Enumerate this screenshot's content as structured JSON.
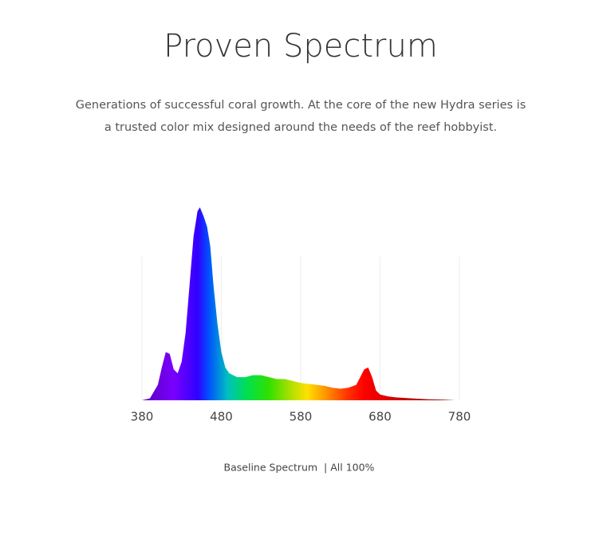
{
  "header": {
    "title": "Proven Spectrum",
    "subtitle_lines": [
      "Generations of successful coral growth. At the core of the new Hydra series is",
      "a trusted color mix designed around the needs of the reef hobbyist."
    ]
  },
  "chart_data": {
    "type": "area",
    "x": [
      380,
      390,
      400,
      405,
      410,
      415,
      420,
      425,
      430,
      435,
      440,
      445,
      450,
      453,
      458,
      462,
      466,
      470,
      475,
      480,
      485,
      490,
      500,
      510,
      520,
      530,
      540,
      550,
      560,
      570,
      580,
      590,
      600,
      610,
      620,
      630,
      640,
      650,
      655,
      660,
      665,
      670,
      675,
      680,
      690,
      700,
      720,
      740,
      760,
      775
    ],
    "values": [
      0,
      1,
      8,
      17,
      25,
      24,
      16,
      14,
      20,
      35,
      60,
      85,
      98,
      100,
      95,
      90,
      80,
      60,
      40,
      25,
      17,
      14,
      12,
      12,
      13,
      13,
      12,
      11,
      11,
      10,
      9,
      8.5,
      8,
      7.5,
      6.5,
      6,
      6.5,
      8,
      12,
      16,
      17,
      12,
      5,
      3,
      2,
      1.5,
      1,
      0.5,
      0.3,
      0
    ],
    "xlim": [
      380,
      780
    ],
    "xticks": [
      380,
      480,
      580,
      680,
      780
    ],
    "ylim": [
      0,
      100
    ],
    "grid": true,
    "caption": "Baseline Spectrum  | All 100%"
  }
}
